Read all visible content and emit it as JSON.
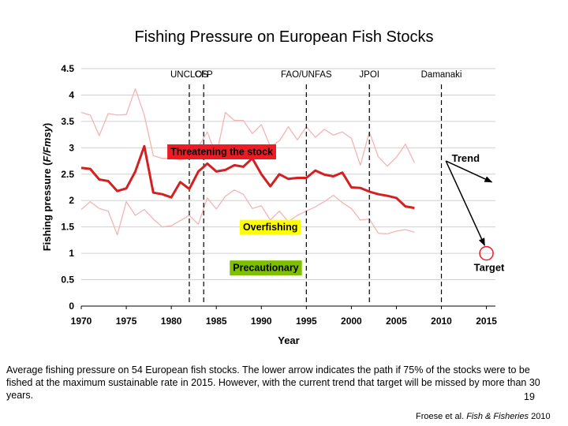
{
  "slide": {
    "title": "Fishing Pressure on European Fish Stocks",
    "caption": "Average fishing pressure on 54 European fish stocks. The lower arrow indicates the path if 75% of the stocks were to be fished at the maximum sustainable rate in 2015. However, with the current trend that target will be missed by more than 30 years.",
    "page_number": "19",
    "source": {
      "author": "Froese et al.",
      "journal": "Fish & Fisheries",
      "year": "2010"
    }
  },
  "colors": {
    "mean_line": "#d42020",
    "band_lines": "#f4b4b4",
    "threatening_box": "#ed1c24",
    "overfishing_box": "#ffff00",
    "precautionary_box": "#7ec000",
    "grid": "#d0d0d0",
    "axis": "#000000"
  },
  "chart_data": {
    "type": "line",
    "xlabel": "Year",
    "ylabel": "Fishing pressure (F/Fmsy)",
    "xlim": [
      1970,
      2016
    ],
    "ylim": [
      0,
      4.5
    ],
    "xticks": [
      1970,
      1975,
      1980,
      1985,
      1990,
      1995,
      2000,
      2005,
      2010,
      2015
    ],
    "yticks": [
      0,
      0.5,
      1,
      1.5,
      2,
      2.5,
      3,
      3.5,
      4,
      4.5
    ],
    "grid": "horizontal",
    "series": [
      {
        "name": "Mean",
        "role": "mean",
        "x": [
          1970,
          1971,
          1972,
          1973,
          1974,
          1975,
          1976,
          1977,
          1978,
          1979,
          1980,
          1981,
          1982,
          1983,
          1984,
          1985,
          1986,
          1987,
          1988,
          1989,
          1990,
          1991,
          1992,
          1993,
          1994,
          1995,
          1996,
          1997,
          1998,
          1999,
          2000,
          2001,
          2002,
          2003,
          2004,
          2005,
          2006,
          2007
        ],
        "values": [
          2.62,
          2.6,
          2.4,
          2.37,
          2.18,
          2.23,
          2.55,
          3.03,
          2.15,
          2.12,
          2.06,
          2.35,
          2.22,
          2.55,
          2.7,
          2.55,
          2.58,
          2.67,
          2.64,
          2.8,
          2.5,
          2.27,
          2.5,
          2.41,
          2.43,
          2.43,
          2.57,
          2.49,
          2.46,
          2.53,
          2.25,
          2.24,
          2.17,
          2.12,
          2.09,
          2.05,
          1.89,
          1.86
        ]
      },
      {
        "name": "Upper band",
        "role": "band",
        "x": [
          1970,
          1971,
          1972,
          1973,
          1974,
          1975,
          1976,
          1977,
          1978,
          1979,
          1980,
          1981,
          1982,
          1983,
          1984,
          1985,
          1986,
          1987,
          1988,
          1989,
          1990,
          1991,
          1992,
          1993,
          1994,
          1995,
          1996,
          1997,
          1998,
          1999,
          2000,
          2001,
          2002,
          2003,
          2004,
          2005,
          2006,
          2007
        ],
        "values": [
          3.67,
          3.62,
          3.23,
          3.65,
          3.62,
          3.63,
          4.12,
          3.62,
          2.85,
          2.8,
          2.8,
          2.77,
          2.8,
          3.02,
          3.3,
          2.84,
          3.67,
          3.52,
          3.52,
          3.27,
          3.44,
          3.02,
          3.13,
          3.4,
          3.15,
          3.4,
          3.2,
          3.35,
          3.24,
          3.3,
          3.18,
          2.67,
          3.3,
          2.83,
          2.65,
          2.82,
          3.07,
          2.72
        ]
      },
      {
        "name": "Lower band",
        "role": "band",
        "x": [
          1970,
          1971,
          1972,
          1973,
          1974,
          1975,
          1976,
          1977,
          1978,
          1979,
          1980,
          1981,
          1982,
          1983,
          1984,
          1985,
          1986,
          1987,
          1988,
          1989,
          1990,
          1991,
          1992,
          1993,
          1994,
          1995,
          1996,
          1997,
          1998,
          1999,
          2000,
          2001,
          2002,
          2003,
          2004,
          2005,
          2006,
          2007
        ],
        "values": [
          1.83,
          1.98,
          1.85,
          1.8,
          1.35,
          1.98,
          1.72,
          1.83,
          1.65,
          1.5,
          1.52,
          1.62,
          1.72,
          1.55,
          2.05,
          1.84,
          2.08,
          2.2,
          2.12,
          1.85,
          1.9,
          1.63,
          1.8,
          1.6,
          1.72,
          1.8,
          1.88,
          1.98,
          2.1,
          1.96,
          1.85,
          1.63,
          1.65,
          1.38,
          1.37,
          1.42,
          1.45,
          1.4
        ]
      }
    ],
    "milestones": [
      {
        "label": "UNCLOS",
        "year": 1982
      },
      {
        "label": "CFP",
        "year": 1983.6
      },
      {
        "label": "FAO/UNFAS",
        "year": 1995
      },
      {
        "label": "JPOI",
        "year": 2002
      },
      {
        "label": "Damanaki",
        "year": 2010
      }
    ],
    "zones": [
      {
        "label": "Threatening the stock",
        "x": 1985.6,
        "y": 2.93,
        "style": "threatening"
      },
      {
        "label": "Overfishing",
        "x": 1991,
        "y": 1.5,
        "style": "overfishing"
      },
      {
        "label": "Precautionary",
        "x": 1990.5,
        "y": 0.73,
        "style": "precautionary"
      }
    ],
    "annotations": [
      {
        "label": "Trend",
        "x": 2012.7,
        "y": 2.8
      },
      {
        "label": "Target",
        "x": 2015.3,
        "y": 0.73
      }
    ],
    "arrows": [
      {
        "name": "trend-arrow",
        "from": [
          2010.5,
          2.75
        ],
        "to": [
          2015.6,
          2.35
        ]
      },
      {
        "name": "target-arrow",
        "from": [
          2010.5,
          2.75
        ],
        "to": [
          2014.8,
          1.15
        ]
      }
    ],
    "target_marker": {
      "x": 2015,
      "y": 1
    }
  }
}
